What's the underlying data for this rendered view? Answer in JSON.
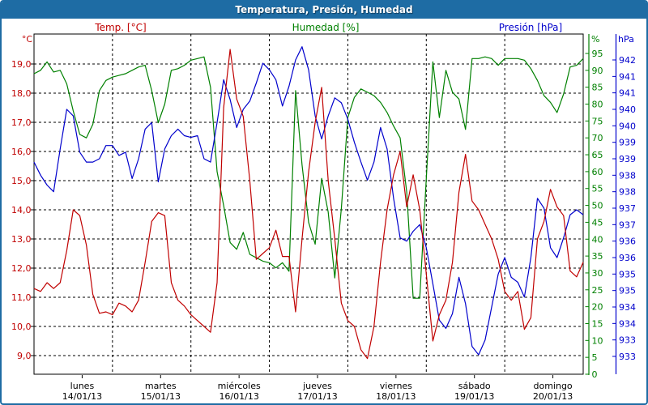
{
  "window": {
    "title": "Temperatura, Presión, Humedad"
  },
  "colors": {
    "titlebar": "#1E6CA4",
    "border": "#1E6CA4",
    "temp": "#C00000",
    "humidity": "#008000",
    "pressure": "#0000CC",
    "grid": "#000000",
    "background": "#FFFFFF"
  },
  "legend": {
    "temp": "Temp. [°C]",
    "humidity": "Humedad [%]",
    "pressure": "Presión [hPa]"
  },
  "axes": {
    "left": {
      "unit": "°C",
      "tick_labels": [
        "19,0",
        "18,0",
        "17,0",
        "16,0",
        "15,0",
        "14,0",
        "13,0",
        "12,0",
        "11,0",
        "10,0",
        "9,0"
      ],
      "tick_values": [
        19,
        18,
        17,
        16,
        15,
        14,
        13,
        12,
        11,
        10,
        9
      ]
    },
    "humidity": {
      "unit": "%",
      "tick_labels": [
        "95",
        "90",
        "85",
        "80",
        "75",
        "70",
        "65",
        "60",
        "55",
        "50",
        "45",
        "40",
        "35",
        "30",
        "25",
        "20",
        "15",
        "10",
        "5",
        "0"
      ],
      "tick_values": [
        95,
        90,
        85,
        80,
        75,
        70,
        65,
        60,
        55,
        50,
        45,
        40,
        35,
        30,
        25,
        20,
        15,
        10,
        5,
        0
      ]
    },
    "pressure": {
      "unit": "hPa",
      "tick_labels": [
        "942",
        "941",
        "941",
        "940",
        "940",
        "939",
        "939",
        "938",
        "938",
        "937",
        "937",
        "936",
        "936",
        "935",
        "935",
        "934",
        "934",
        "933",
        "933"
      ],
      "tick_values": [
        942,
        941.5,
        941,
        940.5,
        940,
        939.5,
        939,
        938.5,
        938,
        937.5,
        937,
        936.5,
        936,
        935.5,
        935,
        934.5,
        934,
        933.5,
        933
      ]
    }
  },
  "x_axis": {
    "day_names": [
      "lunes",
      "martes",
      "miércoles",
      "jueves",
      "viernes",
      "sábado",
      "domingo"
    ],
    "day_dates": [
      "14/01/13",
      "15/01/13",
      "16/01/13",
      "17/01/13",
      "18/01/13",
      "19/01/13",
      "20/01/13"
    ]
  },
  "chart_data": {
    "type": "line",
    "title": "Temperatura, Presión, Humedad",
    "x": {
      "unit": "hours",
      "start": 0,
      "step": 2,
      "total_hours": 168,
      "days": 7
    },
    "grid": {
      "horizontal": true,
      "vertical_day_lines": 6,
      "style": "dashed-black"
    },
    "legend_position": "top",
    "series": [
      {
        "name": "Temp. [°C]",
        "unit": "°C",
        "color": "#C00000",
        "axis": "left",
        "ylim": [
          9,
          19
        ],
        "values": [
          11.3,
          11.2,
          11.5,
          11.3,
          11.5,
          12.6,
          14.0,
          13.8,
          12.8,
          11.1,
          10.45,
          10.5,
          10.4,
          10.8,
          10.7,
          10.5,
          10.9,
          12.2,
          13.6,
          13.9,
          13.8,
          11.5,
          10.9,
          10.7,
          10.4,
          10.2,
          10.0,
          9.8,
          11.5,
          17.5,
          19.5,
          17.8,
          17.2,
          15.0,
          12.3,
          12.5,
          12.7,
          13.3,
          12.4,
          12.4,
          10.5,
          13.0,
          15.3,
          17.0,
          18.2,
          15.0,
          13.0,
          10.8,
          10.2,
          10.0,
          9.2,
          8.9,
          10.0,
          12.2,
          14.0,
          15.2,
          16.0,
          14.1,
          15.2,
          14.0,
          11.8,
          9.5,
          10.4,
          10.9,
          12.2,
          14.6,
          15.9,
          14.3,
          14.0,
          13.5,
          13.0,
          12.3,
          11.2,
          10.9,
          11.2,
          9.9,
          10.3,
          13.0,
          13.6,
          14.7,
          14.1,
          13.8,
          11.9,
          11.7,
          12.2
        ]
      },
      {
        "name": "Humedad [%]",
        "unit": "%",
        "color": "#008000",
        "axis": "right-humidity",
        "ylim": [
          0,
          100
        ],
        "values": [
          89,
          90,
          92.5,
          89.5,
          90,
          86,
          78,
          71,
          70,
          74,
          84,
          87,
          88,
          88.5,
          89,
          90,
          91,
          91.5,
          84,
          74.5,
          80,
          90,
          90.5,
          91.5,
          93,
          93.5,
          94,
          85,
          60,
          50,
          39,
          37,
          42,
          35.5,
          34.5,
          33.5,
          33,
          31.5,
          33,
          30.5,
          84,
          62,
          45,
          38.5,
          58,
          48,
          28.5,
          49,
          76,
          82,
          84.5,
          83.5,
          82.5,
          80.5,
          77.5,
          73.5,
          70,
          54,
          22.5,
          22.5,
          58,
          92.5,
          76,
          90,
          83.5,
          81.5,
          72.5,
          93.5,
          93.5,
          94,
          93.5,
          91.5,
          93.5,
          93.5,
          93.5,
          93,
          90.5,
          87,
          82.5,
          80.5,
          77.5,
          83,
          91,
          91.5,
          93.5
        ]
      },
      {
        "name": "Presión [hPa]",
        "unit": "hPa",
        "color": "#0000CC",
        "axis": "right-pressure",
        "ylim": [
          933,
          942
        ],
        "values": [
          938.9,
          938.5,
          938.2,
          938.0,
          939.3,
          940.5,
          940.3,
          939.2,
          938.9,
          938.9,
          939.0,
          939.4,
          939.4,
          939.1,
          939.2,
          938.4,
          939.0,
          939.9,
          940.1,
          938.3,
          939.3,
          939.7,
          939.9,
          939.7,
          939.65,
          939.7,
          939.0,
          938.9,
          940.1,
          941.4,
          940.8,
          939.95,
          940.5,
          940.75,
          941.3,
          941.9,
          941.7,
          941.4,
          940.6,
          941.2,
          942.0,
          942.4,
          941.7,
          940.3,
          939.6,
          940.3,
          940.85,
          940.7,
          940.2,
          939.5,
          938.9,
          938.35,
          938.9,
          939.95,
          939.3,
          937.8,
          936.6,
          936.5,
          936.8,
          937.0,
          936.3,
          935.2,
          934.1,
          933.85,
          934.3,
          935.4,
          934.6,
          933.3,
          933.05,
          933.5,
          934.5,
          935.5,
          936.0,
          935.4,
          935.25,
          934.8,
          936.0,
          937.8,
          937.5,
          936.3,
          936.0,
          936.6,
          937.3,
          937.45,
          937.3
        ]
      }
    ]
  }
}
